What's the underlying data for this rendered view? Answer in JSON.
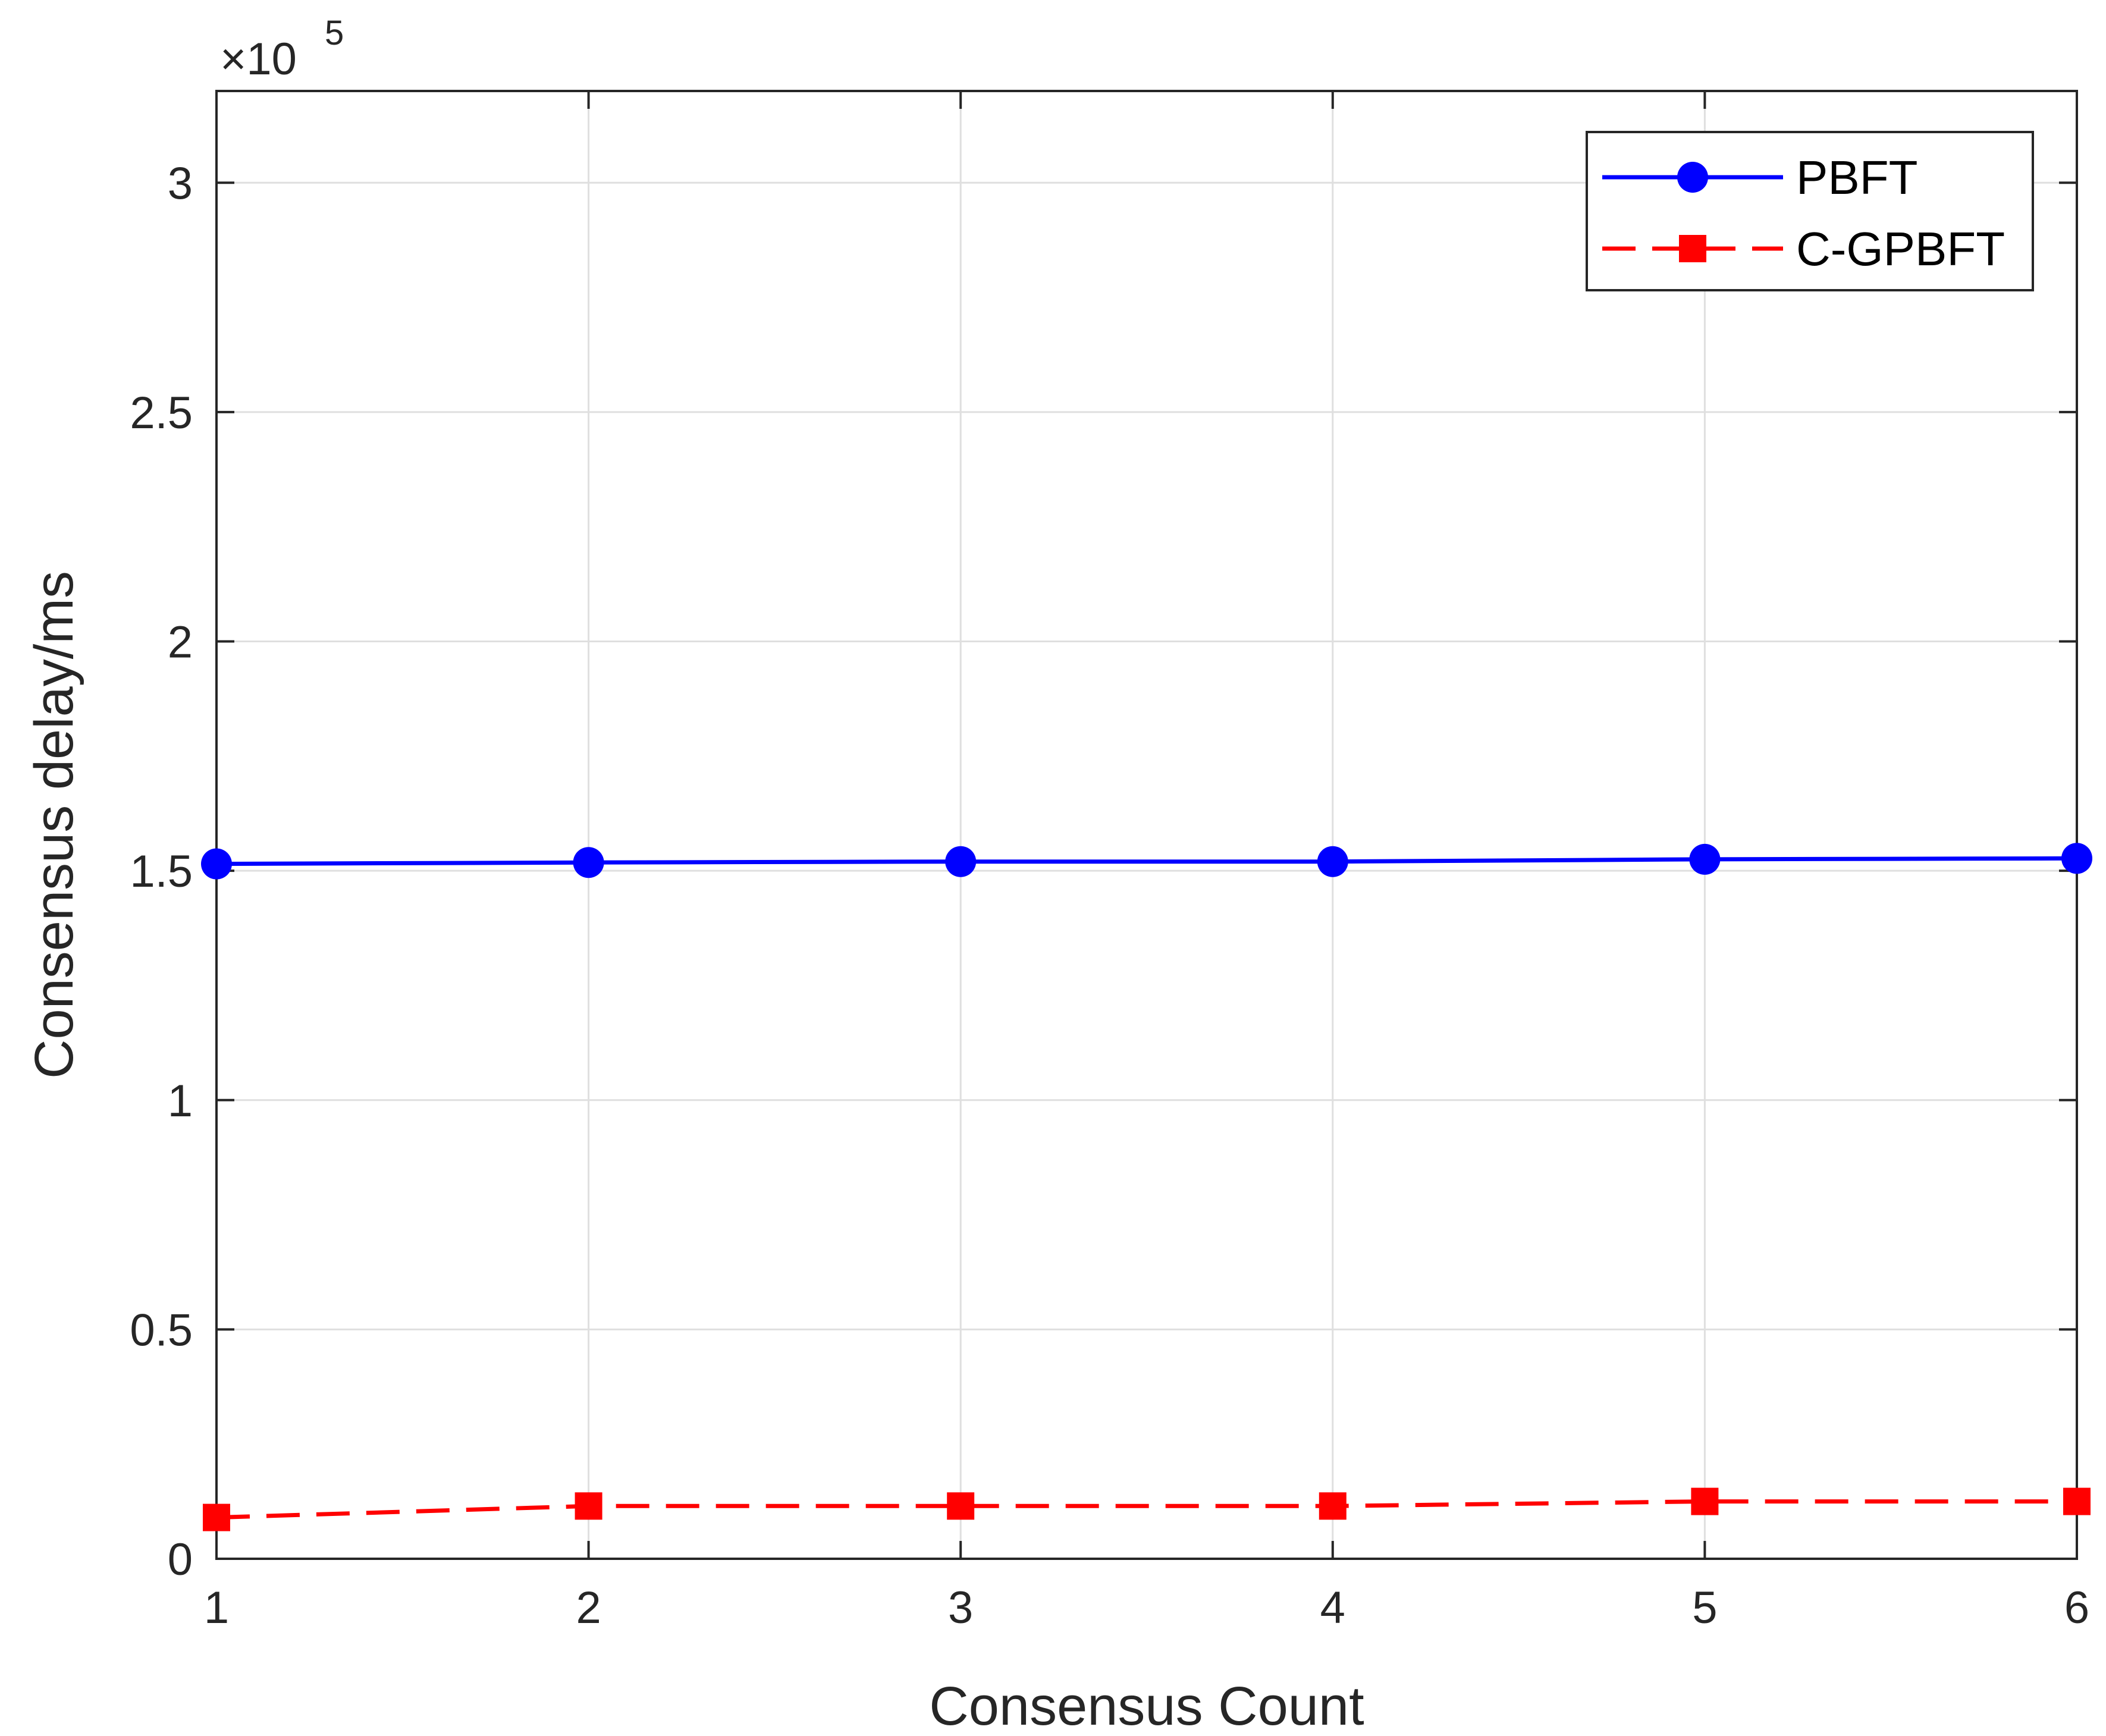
{
  "chart_data": {
    "type": "line",
    "title": "",
    "xlabel": "Consensus Count",
    "ylabel": "Consensus delay/ms",
    "y_exponent_label": "×10",
    "y_exponent_power": "5",
    "xlim": [
      1,
      6
    ],
    "ylim": [
      0,
      3.2
    ],
    "xticks": [
      "1",
      "2",
      "3",
      "4",
      "5",
      "6"
    ],
    "yticks": [
      "0",
      "0.5",
      "1",
      "1.5",
      "2",
      "2.5",
      "3"
    ],
    "grid": true,
    "legend_position": "top-right",
    "x": [
      1,
      2,
      3,
      4,
      5,
      6
    ],
    "series": [
      {
        "name": "PBFT",
        "color": "#0000ff",
        "line_style": "solid",
        "marker": "circle",
        "values": [
          1.515,
          1.518,
          1.52,
          1.52,
          1.525,
          1.527
        ]
      },
      {
        "name": "C-GPBFT",
        "color": "#ff0000",
        "line_style": "dashed",
        "marker": "square",
        "values": [
          0.09,
          0.115,
          0.115,
          0.115,
          0.125,
          0.125
        ]
      }
    ]
  }
}
